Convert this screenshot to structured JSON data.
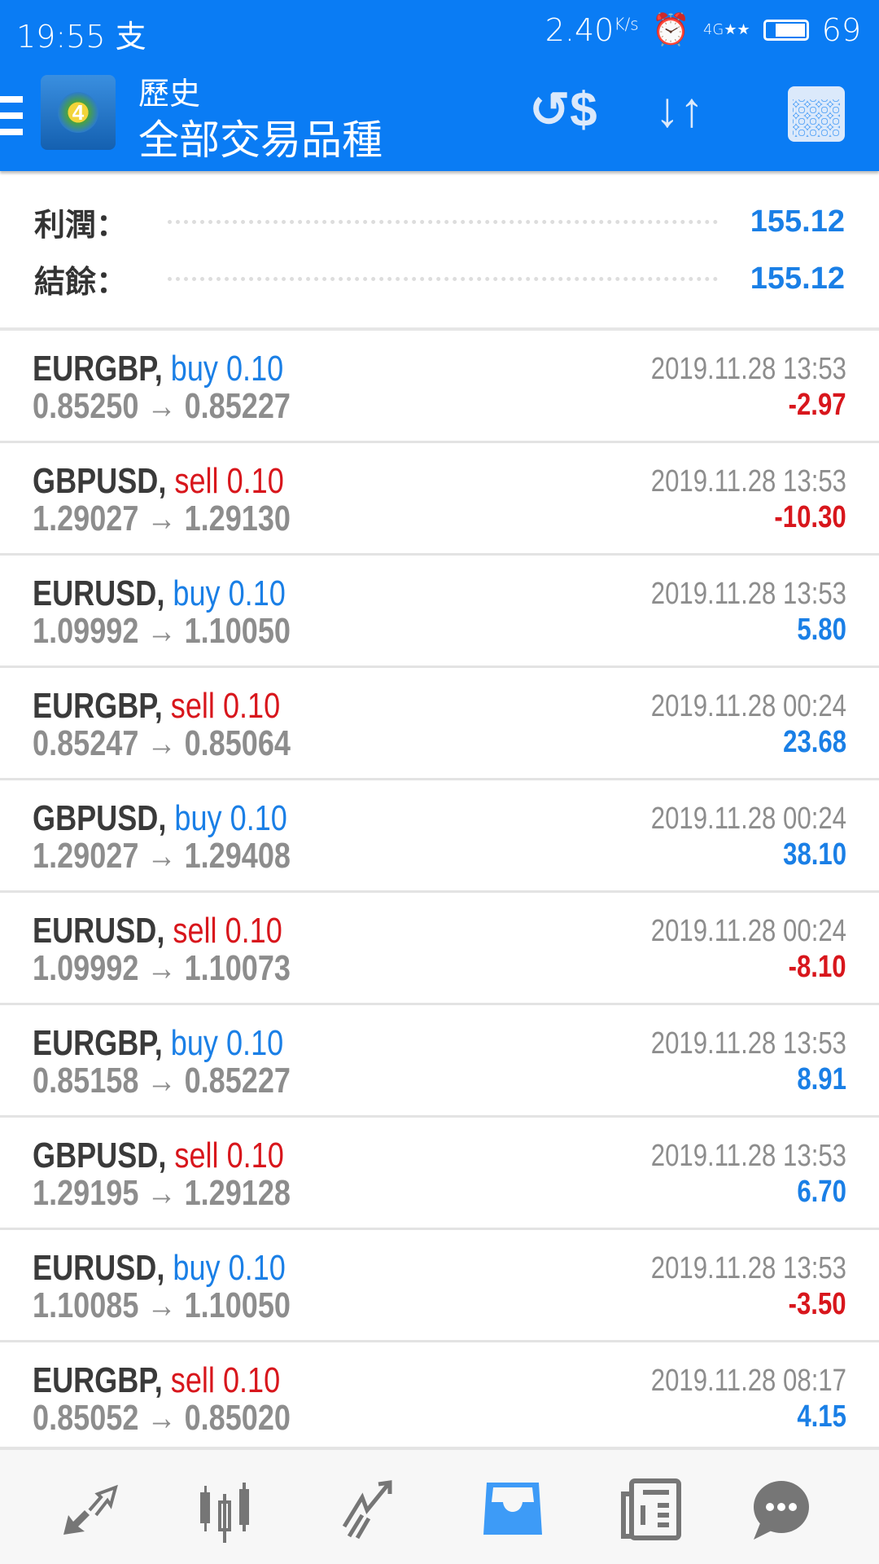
{
  "status_bar": {
    "time": "19:55",
    "carrier_icon": "支",
    "speed": "2.40",
    "speed_unit": "K/s",
    "network": "4G",
    "battery": "69"
  },
  "app_bar": {
    "title": "歷史",
    "subtitle": "全部交易品種",
    "actions": [
      "currency-exchange-icon",
      "sort-icon",
      "calendar-icon"
    ]
  },
  "summary": {
    "profit_label": "利潤：",
    "profit_value": "155.12",
    "balance_label": "結餘：",
    "balance_value": "155.12"
  },
  "colors": {
    "accent": "#0a7cf4",
    "positive": "#1a7fe6",
    "negative": "#d8161c"
  },
  "trades": [
    {
      "symbol": "EURGBP,",
      "side": "buy 0.10",
      "type": "buy",
      "open": "0.85250",
      "close": "0.85227",
      "time": "2019.11.28 13:53",
      "profit": "-2.97"
    },
    {
      "symbol": "GBPUSD,",
      "side": "sell 0.10",
      "type": "sell",
      "open": "1.29027",
      "close": "1.29130",
      "time": "2019.11.28 13:53",
      "profit": "-10.30"
    },
    {
      "symbol": "EURUSD,",
      "side": "buy 0.10",
      "type": "buy",
      "open": "1.09992",
      "close": "1.10050",
      "time": "2019.11.28 13:53",
      "profit": "5.80"
    },
    {
      "symbol": "EURGBP,",
      "side": "sell 0.10",
      "type": "sell",
      "open": "0.85247",
      "close": "0.85064",
      "time": "2019.11.28 00:24",
      "profit": "23.68"
    },
    {
      "symbol": "GBPUSD,",
      "side": "buy 0.10",
      "type": "buy",
      "open": "1.29027",
      "close": "1.29408",
      "time": "2019.11.28 00:24",
      "profit": "38.10"
    },
    {
      "symbol": "EURUSD,",
      "side": "sell 0.10",
      "type": "sell",
      "open": "1.09992",
      "close": "1.10073",
      "time": "2019.11.28 00:24",
      "profit": "-8.10"
    },
    {
      "symbol": "EURGBP,",
      "side": "buy 0.10",
      "type": "buy",
      "open": "0.85158",
      "close": "0.85227",
      "time": "2019.11.28 13:53",
      "profit": "8.91"
    },
    {
      "symbol": "GBPUSD,",
      "side": "sell 0.10",
      "type": "sell",
      "open": "1.29195",
      "close": "1.29128",
      "time": "2019.11.28 13:53",
      "profit": "6.70"
    },
    {
      "symbol": "EURUSD,",
      "side": "buy 0.10",
      "type": "buy",
      "open": "1.10085",
      "close": "1.10050",
      "time": "2019.11.28 13:53",
      "profit": "-3.50"
    },
    {
      "symbol": "EURGBP,",
      "side": "sell 0.10",
      "type": "sell",
      "open": "0.85052",
      "close": "0.85020",
      "time": "2019.11.28 08:17",
      "profit": "4.15"
    }
  ],
  "bottom_nav": {
    "items": [
      "quotes-icon",
      "chart-icon",
      "trade-icon",
      "history-icon",
      "news-icon",
      "chat-icon"
    ],
    "active": "history-icon"
  }
}
